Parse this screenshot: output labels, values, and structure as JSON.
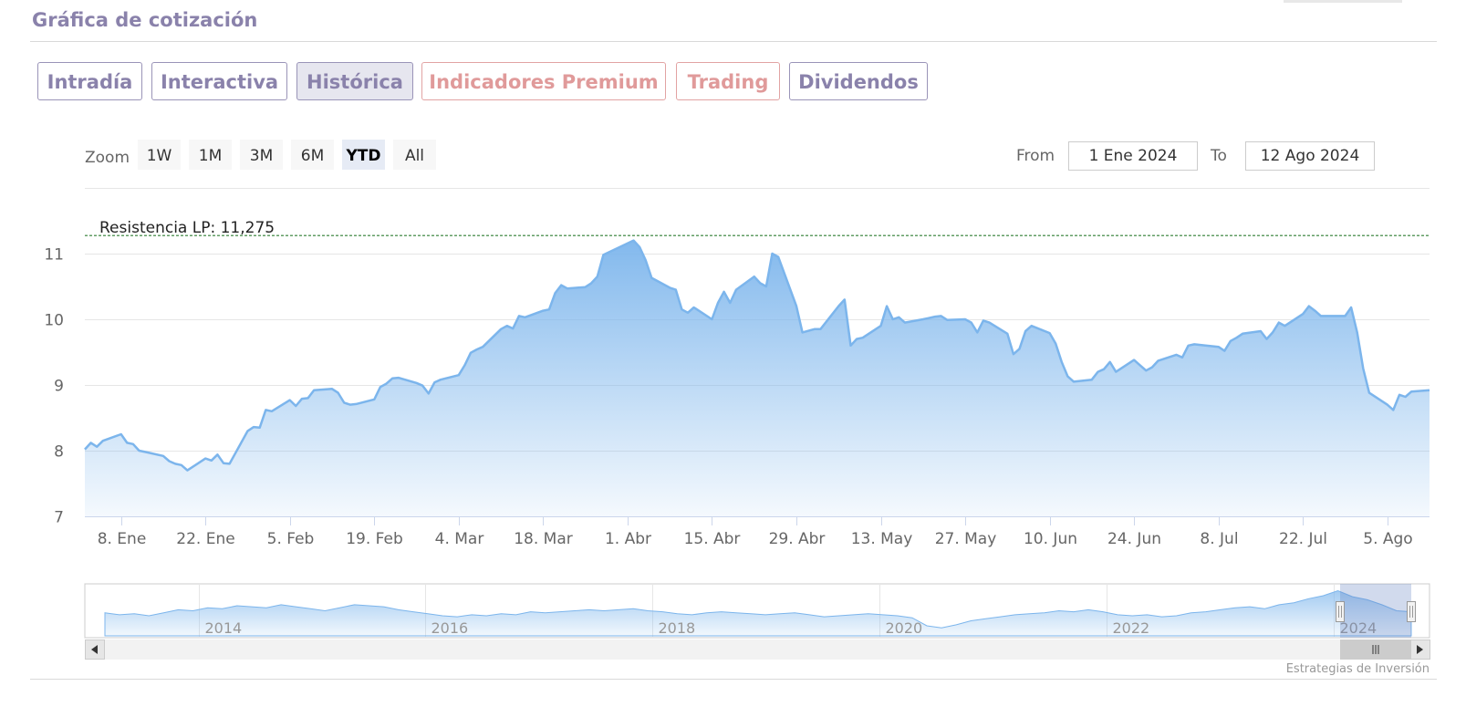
{
  "page": {
    "title": "Gráfica de cotización"
  },
  "tabs": [
    {
      "label": "Intradía",
      "state": "normal"
    },
    {
      "label": "Interactiva",
      "state": "normal"
    },
    {
      "label": "Histórica",
      "state": "active"
    },
    {
      "label": "Indicadores Premium",
      "state": "premium"
    },
    {
      "label": "Trading",
      "state": "premium"
    },
    {
      "label": "Dividendos",
      "state": "normal"
    }
  ],
  "range_selector": {
    "zoom_label": "Zoom",
    "buttons": [
      "1W",
      "1M",
      "3M",
      "6M",
      "YTD",
      "All"
    ],
    "selected": "YTD",
    "from_label": "From",
    "from_value": "1 Ene 2024",
    "to_label": "To",
    "to_value": "12 Ago 2024"
  },
  "credits": "Estrategias de Inversión",
  "colors": {
    "line": "#7cb5ec",
    "area_top": "#7cb5ec",
    "accent": "#8a82ab",
    "premium": "#e09a9a",
    "resistance": "#2e7d32"
  },
  "chart_data": {
    "type": "area",
    "ylim": [
      7,
      11.275
    ],
    "y_ticks": [
      7,
      8,
      9,
      10,
      11
    ],
    "x_ticks": [
      "8. Ene",
      "22. Ene",
      "5. Feb",
      "19. Feb",
      "4. Mar",
      "18. Mar",
      "1. Abr",
      "15. Abr",
      "29. Abr",
      "13. May",
      "27. May",
      "10. Jun",
      "24. Jun",
      "8. Jul",
      "22. Jul",
      "5. Ago"
    ],
    "x_range": [
      "2024-01-02",
      "2024-08-12"
    ],
    "resistance": {
      "label": "Resistencia LP: 11,275",
      "value": 11.275
    },
    "series": [
      {
        "x": [
          "2024-01-02",
          "2024-01-03",
          "2024-01-04",
          "2024-01-05",
          "2024-01-08",
          "2024-01-09",
          "2024-01-10",
          "2024-01-11",
          "2024-01-12",
          "2024-01-15",
          "2024-01-16",
          "2024-01-17",
          "2024-01-18",
          "2024-01-19",
          "2024-01-22",
          "2024-01-23",
          "2024-01-24",
          "2024-01-25",
          "2024-01-26",
          "2024-01-29",
          "2024-01-30",
          "2024-01-31",
          "2024-02-01",
          "2024-02-02",
          "2024-02-05",
          "2024-02-06",
          "2024-02-07",
          "2024-02-08",
          "2024-02-09",
          "2024-02-12",
          "2024-02-13",
          "2024-02-14",
          "2024-02-15",
          "2024-02-16",
          "2024-02-19",
          "2024-02-20",
          "2024-02-21",
          "2024-02-22",
          "2024-02-23",
          "2024-02-26",
          "2024-02-27",
          "2024-02-28",
          "2024-02-29",
          "2024-03-01",
          "2024-03-04",
          "2024-03-05",
          "2024-03-06",
          "2024-03-07",
          "2024-03-08",
          "2024-03-11",
          "2024-03-12",
          "2024-03-13",
          "2024-03-14",
          "2024-03-15",
          "2024-03-18",
          "2024-03-19",
          "2024-03-20",
          "2024-03-21",
          "2024-03-22",
          "2024-03-25",
          "2024-03-26",
          "2024-03-27",
          "2024-03-28",
          "2024-04-02",
          "2024-04-03",
          "2024-04-04",
          "2024-04-05",
          "2024-04-08",
          "2024-04-09",
          "2024-04-10",
          "2024-04-11",
          "2024-04-12",
          "2024-04-15",
          "2024-04-16",
          "2024-04-17",
          "2024-04-18",
          "2024-04-19",
          "2024-04-22",
          "2024-04-23",
          "2024-04-24",
          "2024-04-25",
          "2024-04-26",
          "2024-04-29",
          "2024-04-30",
          "2024-05-02",
          "2024-05-03",
          "2024-05-06",
          "2024-05-07",
          "2024-05-08",
          "2024-05-09",
          "2024-05-10",
          "2024-05-13",
          "2024-05-14",
          "2024-05-15",
          "2024-05-16",
          "2024-05-17",
          "2024-05-20",
          "2024-05-21",
          "2024-05-22",
          "2024-05-23",
          "2024-05-24",
          "2024-05-27",
          "2024-05-28",
          "2024-05-29",
          "2024-05-30",
          "2024-05-31",
          "2024-06-03",
          "2024-06-04",
          "2024-06-05",
          "2024-06-06",
          "2024-06-07",
          "2024-06-10",
          "2024-06-11",
          "2024-06-12",
          "2024-06-13",
          "2024-06-14",
          "2024-06-17",
          "2024-06-18",
          "2024-06-19",
          "2024-06-20",
          "2024-06-21",
          "2024-06-24",
          "2024-06-25",
          "2024-06-26",
          "2024-06-27",
          "2024-06-28",
          "2024-07-01",
          "2024-07-02",
          "2024-07-03",
          "2024-07-04",
          "2024-07-05",
          "2024-07-08",
          "2024-07-09",
          "2024-07-10",
          "2024-07-11",
          "2024-07-12",
          "2024-07-15",
          "2024-07-16",
          "2024-07-17",
          "2024-07-18",
          "2024-07-19",
          "2024-07-22",
          "2024-07-23",
          "2024-07-24",
          "2024-07-25",
          "2024-07-26",
          "2024-07-29",
          "2024-07-30",
          "2024-07-31",
          "2024-08-01",
          "2024-08-02",
          "2024-08-05",
          "2024-08-06",
          "2024-08-07",
          "2024-08-08",
          "2024-08-09",
          "2024-08-12"
        ],
        "y": [
          8.02,
          8.12,
          8.06,
          8.15,
          8.25,
          8.12,
          8.1,
          8.0,
          7.98,
          7.92,
          7.84,
          7.8,
          7.78,
          7.7,
          7.88,
          7.85,
          7.94,
          7.81,
          7.8,
          8.3,
          8.36,
          8.35,
          8.62,
          8.6,
          8.77,
          8.68,
          8.79,
          8.8,
          8.92,
          8.94,
          8.88,
          8.73,
          8.7,
          8.71,
          8.78,
          8.97,
          9.02,
          9.1,
          9.11,
          9.03,
          8.99,
          8.87,
          9.04,
          9.08,
          9.15,
          9.3,
          9.49,
          9.54,
          9.58,
          9.85,
          9.9,
          9.86,
          10.05,
          10.03,
          10.13,
          10.15,
          10.4,
          10.52,
          10.47,
          10.49,
          10.55,
          10.65,
          10.98,
          11.2,
          11.1,
          10.9,
          10.63,
          10.48,
          10.45,
          10.15,
          10.1,
          10.18,
          10.0,
          10.25,
          10.42,
          10.25,
          10.45,
          10.65,
          10.55,
          10.5,
          11.0,
          10.95,
          10.2,
          9.8,
          9.85,
          9.85,
          10.2,
          10.3,
          9.6,
          9.7,
          9.72,
          9.9,
          10.2,
          10.0,
          10.03,
          9.95,
          10.0,
          10.02,
          10.04,
          10.05,
          9.99,
          10.0,
          9.95,
          9.8,
          9.98,
          9.95,
          9.78,
          9.47,
          9.55,
          9.82,
          9.9,
          9.79,
          9.63,
          9.35,
          9.13,
          9.05,
          9.08,
          9.2,
          9.24,
          9.35,
          9.2,
          9.38,
          9.3,
          9.22,
          9.27,
          9.37,
          9.46,
          9.42,
          9.6,
          9.62,
          9.61,
          9.58,
          9.52,
          9.67,
          9.72,
          9.78,
          9.82,
          9.7,
          9.8,
          9.95,
          9.9,
          10.08,
          10.2,
          10.13,
          10.05,
          10.05,
          10.05,
          10.18,
          9.8,
          9.25,
          8.88,
          8.7,
          8.62,
          8.85,
          8.82,
          8.9,
          8.92
        ]
      }
    ],
    "navigator": {
      "year_labels": [
        "2014",
        "2016",
        "2018",
        "2020",
        "2022",
        "2024"
      ],
      "values": [
        8.8,
        8.6,
        8.7,
        8.5,
        8.8,
        9.1,
        9.0,
        9.3,
        9.2,
        9.5,
        9.4,
        9.3,
        9.6,
        9.4,
        9.2,
        9.0,
        9.3,
        9.6,
        9.5,
        9.4,
        9.1,
        8.9,
        8.7,
        8.5,
        8.4,
        8.6,
        8.5,
        8.7,
        8.6,
        8.9,
        8.8,
        8.9,
        9.0,
        9.1,
        9.0,
        9.1,
        9.2,
        9.0,
        8.9,
        8.7,
        8.6,
        8.8,
        8.9,
        8.8,
        8.7,
        8.6,
        8.7,
        8.8,
        8.6,
        8.4,
        8.5,
        8.6,
        8.7,
        8.6,
        8.5,
        8.3,
        7.5,
        7.3,
        7.6,
        8.0,
        8.2,
        8.4,
        8.6,
        8.7,
        8.8,
        9.0,
        8.9,
        9.1,
        8.9,
        8.6,
        8.5,
        8.6,
        8.4,
        8.5,
        8.8,
        8.9,
        9.1,
        9.3,
        9.4,
        9.2,
        9.6,
        9.8,
        10.2,
        10.5,
        11.0,
        10.4,
        10.1,
        9.6,
        9.0,
        8.9
      ],
      "ylim": [
        6.5,
        11.5
      ]
    }
  }
}
